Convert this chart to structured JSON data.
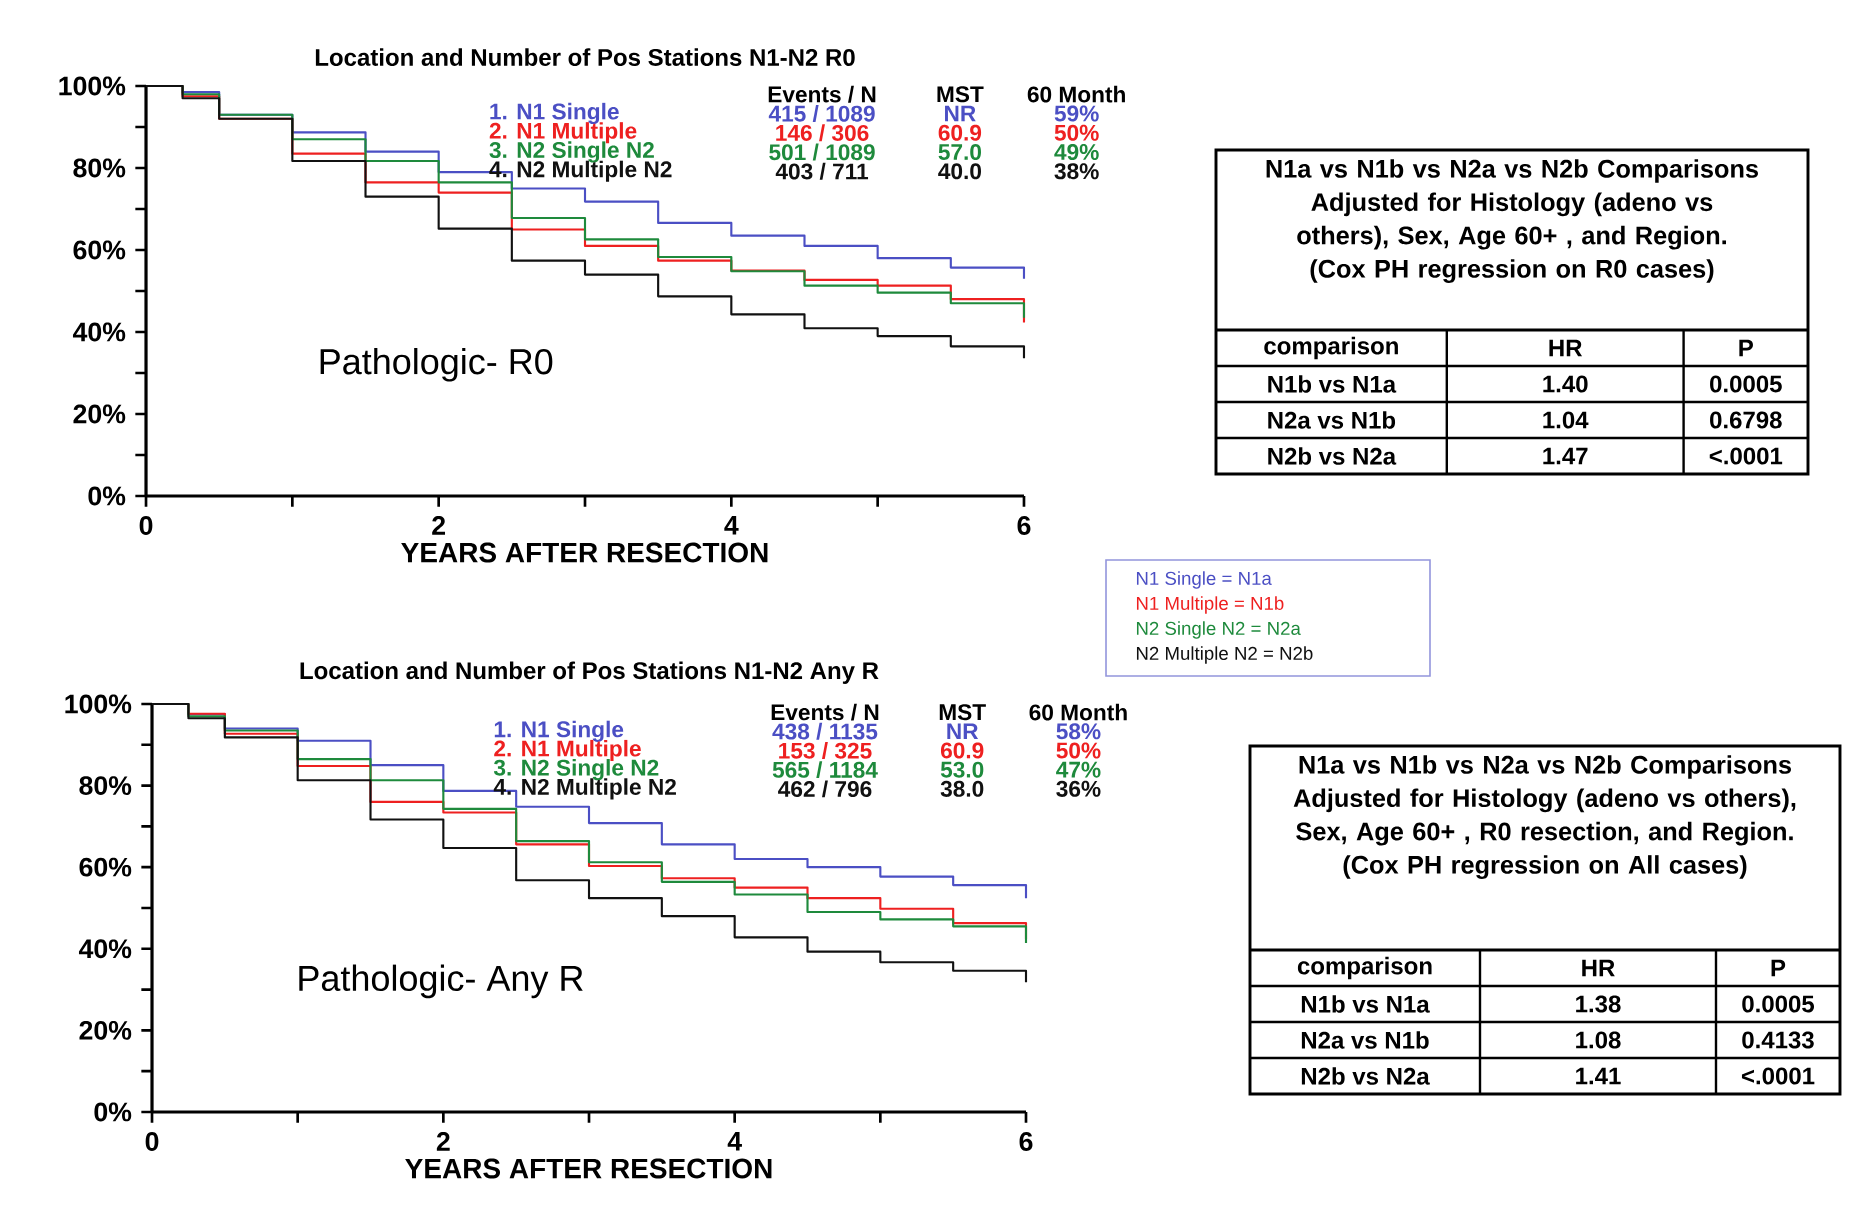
{
  "chart_data": [
    {
      "type": "step",
      "title": "Location and Number of Pos Stations N1-N2 R0",
      "xlabel": "YEARS AFTER RESECTION",
      "legend": "top right",
      "x": [
        0,
        0.25,
        0.5,
        1,
        1.5,
        2,
        2.5,
        3,
        3.5,
        4,
        4.5,
        5,
        5.5,
        6
      ],
      "xlim": [
        0,
        6
      ],
      "ylim": [
        0,
        100
      ],
      "xticks": [
        0,
        {
          "value": 1,
          "label": null
        },
        2,
        {
          "value": 3,
          "label": null
        },
        4,
        {
          "value": 5,
          "label": null
        },
        6
      ],
      "yticks": [
        {
          "value": 0,
          "label": "0%"
        },
        {
          "value": 10,
          "label": null
        },
        {
          "value": 20,
          "label": "20%"
        },
        {
          "value": 30,
          "label": null
        },
        {
          "value": 40,
          "label": "40%"
        },
        {
          "value": 50,
          "label": null
        },
        {
          "value": 60,
          "label": "60%"
        },
        {
          "value": 70,
          "label": null
        },
        {
          "value": 80,
          "label": "80%"
        },
        {
          "value": 90,
          "label": null
        },
        {
          "value": 100,
          "label": "100%"
        }
      ],
      "series": [
        {
          "name": "1. N1 Single",
          "color": "#4b4fc4",
          "values": [
            100,
            98.5,
            93,
            88.7,
            84,
            79,
            75,
            71.8,
            66.6,
            63.5,
            61,
            58,
            55.7,
            53
          ]
        },
        {
          "name": "2. N1 Multiple",
          "color": "#ee2020",
          "values": [
            100,
            97.5,
            92,
            83.5,
            76.5,
            74,
            65,
            61,
            57.4,
            55,
            52.7,
            51.3,
            48,
            42.3
          ]
        },
        {
          "name": "3. N2 Single N2",
          "color": "#1e8a3c",
          "values": [
            100,
            98,
            93,
            87,
            81.7,
            76.5,
            67.8,
            62.6,
            58.3,
            54.8,
            51.3,
            49.6,
            47,
            43.5
          ]
        },
        {
          "name": "4. N2 Multiple N2",
          "color": "#111111",
          "values": [
            100,
            97,
            92,
            81.7,
            73,
            65.2,
            57.4,
            54,
            48.7,
            44.3,
            40.9,
            39,
            36.5,
            33.6
          ]
        }
      ],
      "annotations": [
        "Pathologic- R0",
        "Events / N",
        "MST",
        "60 Month",
        "415 / 1089",
        "NR",
        "59%",
        "146 / 306",
        "60.9",
        "50%",
        "501 / 1089",
        "57.0",
        "49%",
        "403 / 711",
        "40.0",
        "38%"
      ]
    },
    {
      "type": "step",
      "title": "Location and Number of Pos Stations N1-N2 Any R",
      "xlabel": "YEARS AFTER RESECTION",
      "legend": "top right",
      "x": [
        0,
        0.25,
        0.5,
        1,
        1.5,
        2,
        2.5,
        3,
        3.5,
        4,
        4.5,
        5,
        5.5,
        6
      ],
      "xlim": [
        0,
        6
      ],
      "ylim": [
        0,
        100
      ],
      "xticks": [
        0,
        {
          "value": 1,
          "label": null
        },
        2,
        {
          "value": 3,
          "label": null
        },
        4,
        {
          "value": 5,
          "label": null
        },
        6
      ],
      "yticks": [
        {
          "value": 0,
          "label": "0%"
        },
        {
          "value": 10,
          "label": null
        },
        {
          "value": 20,
          "label": "20%"
        },
        {
          "value": 30,
          "label": null
        },
        {
          "value": 40,
          "label": "40%"
        },
        {
          "value": 50,
          "label": null
        },
        {
          "value": 60,
          "label": "60%"
        },
        {
          "value": 70,
          "label": null
        },
        {
          "value": 80,
          "label": "80%"
        },
        {
          "value": 90,
          "label": null
        },
        {
          "value": 100,
          "label": "100%"
        }
      ],
      "series": [
        {
          "name": "1. N1 Single",
          "color": "#4b4fc4",
          "values": [
            100,
            97.5,
            94,
            91,
            85,
            78.7,
            74.8,
            70.8,
            65.6,
            62,
            60,
            57.7,
            55.6,
            52.4
          ]
        },
        {
          "name": "2. N1 Multiple",
          "color": "#ee2020",
          "values": [
            100,
            97.6,
            92.7,
            84.8,
            76,
            73.4,
            65.6,
            60.3,
            57.3,
            55,
            52.4,
            49.8,
            46.3,
            42.4
          ]
        },
        {
          "name": "3. N2 Single N2",
          "color": "#1e8a3c",
          "values": [
            100,
            97,
            93.5,
            86.5,
            81.3,
            74.3,
            66.4,
            61.2,
            56.4,
            53.3,
            49,
            47.2,
            45.5,
            41.4
          ]
        },
        {
          "name": "4. N2 Multiple N2",
          "color": "#111111",
          "values": [
            100,
            96.5,
            91.8,
            81.3,
            71.7,
            64.7,
            56.8,
            52.4,
            48,
            42.8,
            39.3,
            36.7,
            34.6,
            31.8
          ]
        }
      ],
      "annotations": [
        "Pathologic- Any R",
        "Events / N",
        "MST",
        "60 Month",
        "438 / 1135",
        "NR",
        "58%",
        "153 / 325",
        "60.9",
        "50%",
        "565 / 1184",
        "53.0",
        "47%",
        "462 / 796",
        "38.0",
        "36%"
      ]
    },
    {
      "type": "other",
      "title": "N1a vs N1b vs N2a vs N2b Comparisons",
      "subtitle": "Adjusted for Histology (adeno vs others), Sex, Age 60+ , and Region. (Cox PH regression on R0 cases)",
      "annotations": [
        "comparison",
        "HR",
        "P",
        "N1b vs N1a",
        "1.40",
        "0.0005",
        "N2a vs N1b",
        "1.04",
        "0.6798",
        "N2b vs N2a",
        "1.47",
        "<.0001"
      ]
    },
    {
      "type": "other",
      "annotations": [
        "N1 Single = N1a",
        "N1 Multiple = N1b",
        "N2 Single N2 = N2a",
        "N2 Multiple N2 = N2b"
      ]
    },
    {
      "type": "other",
      "title": "N1a vs N1b vs N2a vs N2b Comparisons",
      "subtitle": "Adjusted for Histology (adeno vs others), Sex, Age 60+ , R0 resection, and Region. (Cox PH regression on All cases)",
      "annotations": [
        "comparison",
        "HR",
        "P",
        "N1b vs N1a",
        "1.38",
        "0.0005",
        "N2a vs N1b",
        "1.08",
        "0.4133",
        "N2b vs N2a",
        "1.41",
        "<.0001"
      ]
    }
  ]
}
